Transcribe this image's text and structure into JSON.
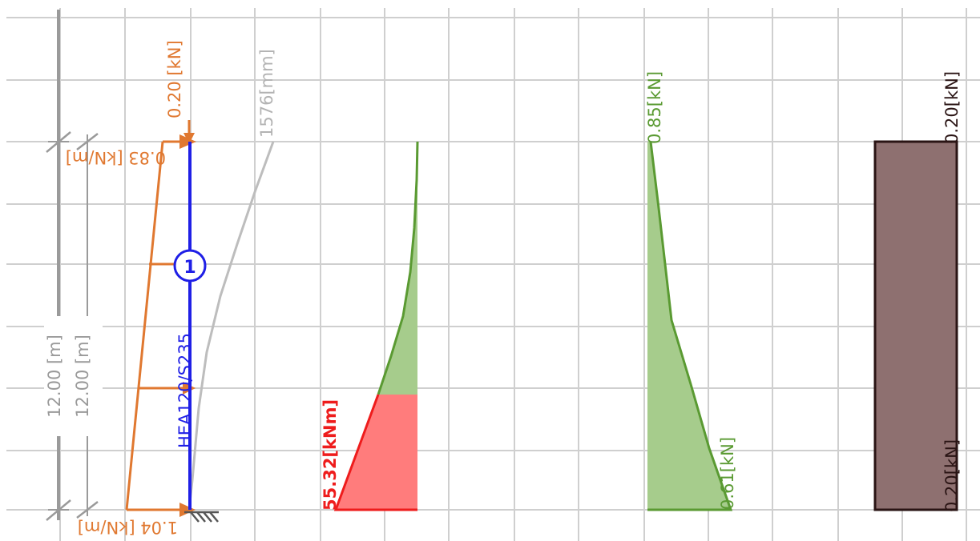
{
  "colors": {
    "grid": "#cfcfcf",
    "dim": "#9a9a9a",
    "load": "#e07830",
    "member": "#1f1fe6",
    "deflection": "#bdbdbd",
    "moment_pos": "#a6cc8c",
    "moment_pos_line": "#5a9a32",
    "moment_neg": "#ff7c7c",
    "moment_neg_line": "#ee1c1c",
    "shear_fill": "#a6cc8c",
    "shear_line": "#5a9a32",
    "axial_fill": "#8e7070",
    "axial_line": "#2a1414"
  },
  "dimensions": {
    "outer_length": "12.00 [m]",
    "inner_length": "12.00 [m]"
  },
  "loads": {
    "point_load": "0.20 [kN]",
    "distributed_top": "0.83 [kN/m]",
    "distributed_bottom": "1.04 [kN/m]"
  },
  "member": {
    "node_number": "1",
    "section_label": "HEA120/S235"
  },
  "deflection": {
    "max_label": "1576[mm]"
  },
  "moment": {
    "max_label": "55.32[kNm]"
  },
  "shear": {
    "top_label": "0.85[kN]",
    "bottom_label": "0.61[kN]"
  },
  "axial": {
    "top_label": "0.20[kN]",
    "bottom_label": "0.20[kN]"
  }
}
